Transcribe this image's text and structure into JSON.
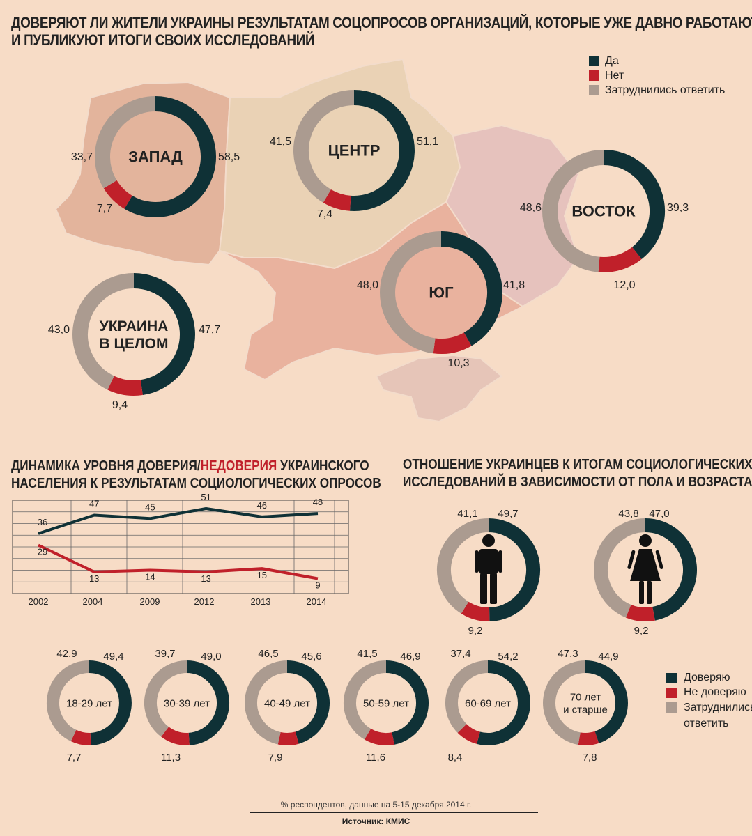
{
  "header": {
    "title_line1": "ДОВЕРЯЮТ ЛИ ЖИТЕЛИ УКРАИНЫ РЕЗУЛЬТАТАМ СОЦОПРОСОВ ОРГАНИЗАЦИЙ, КОТОРЫЕ УЖЕ ДАВНО РАБОТАЮТ",
    "title_line2": "И ПУБЛИКУЮТ ИТОГИ СВОИХ ИССЛЕДОВАНИЙ"
  },
  "legend_top": [
    "Да",
    "Нет",
    "Затруднились ответить"
  ],
  "legend_bottom": [
    "Доверяю",
    "Не доверяю",
    "Затруднились ответить"
  ],
  "colors": {
    "yes": "#0f3136",
    "no": "#c0202a",
    "unsure": "#ab9b90",
    "west": "#e3b49c",
    "center": "#ead2b5",
    "east": "#e6c2bd",
    "south": "#e9b29e",
    "crimea": "#e6c5b8"
  },
  "section_trend": {
    "title_line1_a": "ДИНАМИКА УРОВНЯ ",
    "title_trust": "ДОВЕРИЯ",
    "title_slash": "/",
    "title_distrust": "НЕДОВЕРИЯ",
    "title_line1_b": " УКРАИНСКОГО",
    "title_line2": "НАСЕЛЕНИЯ К РЕЗУЛЬТАТАМ СОЦИОЛОГИЧЕСКИХ ОПРОСОВ"
  },
  "section_demo": {
    "title_line1": "ОТНОШЕНИЕ УКРАИНЦЕВ К ИТОГАМ СОЦИОЛОГИЧЕСКИХ",
    "title_line2": "ИССЛЕДОВАНИЙ В ЗАВИСИМОСТИ ОТ ПОЛА И ВОЗРАСТА"
  },
  "footer": {
    "note": "% респондентов, данные на 5-15 декабря 2014 г.",
    "source": "Источник: КМИС"
  },
  "chart_data": [
    {
      "type": "pie",
      "title": "Регионы",
      "categories": [
        "Да",
        "Нет",
        "Затруднились ответить"
      ],
      "items": [
        {
          "label": [
            "ЗАПАД"
          ],
          "values": [
            58.5,
            7.7,
            33.7
          ],
          "labels": [
            "58,5",
            "7,7",
            "33,7"
          ]
        },
        {
          "label": [
            "ЦЕНТР"
          ],
          "values": [
            51.1,
            7.4,
            41.5
          ],
          "labels": [
            "51,1",
            "7,4",
            "41,5"
          ]
        },
        {
          "label": [
            "ВОСТОК"
          ],
          "values": [
            39.3,
            12.0,
            48.6
          ],
          "labels": [
            "39,3",
            "12,0",
            "48,6"
          ]
        },
        {
          "label": [
            "ЮГ"
          ],
          "values": [
            41.8,
            10.3,
            48.0
          ],
          "labels": [
            "41,8",
            "10,3",
            "48,0"
          ]
        },
        {
          "label": [
            "УКРАИНА",
            "В ЦЕЛОМ"
          ],
          "values": [
            47.7,
            9.4,
            43.0
          ],
          "labels": [
            "47,7",
            "9,4",
            "43,0"
          ]
        }
      ]
    },
    {
      "type": "line",
      "categories": [
        "2002",
        "2004",
        "2009",
        "2012",
        "2013",
        "2014"
      ],
      "series": [
        {
          "name": "ДОВЕРИЯ",
          "values": [
            36,
            47,
            45,
            51,
            46,
            48
          ]
        },
        {
          "name": "НЕДОВЕРИЯ",
          "values": [
            29,
            13,
            14,
            13,
            15,
            9
          ]
        }
      ]
    },
    {
      "type": "pie",
      "categories": [
        "Доверяю",
        "Не доверяю",
        "Затруднились ответить"
      ],
      "items": [
        {
          "label": [],
          "icon": "male-icon",
          "values": [
            49.7,
            9.2,
            41.1
          ],
          "labels": [
            "49,7",
            "9,2",
            "41,1"
          ]
        },
        {
          "label": [],
          "icon": "female-icon",
          "values": [
            47.0,
            9.2,
            43.8
          ],
          "labels": [
            "47,0",
            "9,2",
            "43,8"
          ]
        },
        {
          "label": [
            "18-29 лет"
          ],
          "values": [
            49.4,
            7.7,
            42.9
          ],
          "labels": [
            "49,4",
            "7,7",
            "42,9"
          ]
        },
        {
          "label": [
            "30-39 лет"
          ],
          "values": [
            49.0,
            11.3,
            39.7
          ],
          "labels": [
            "49,0",
            "11,3",
            "39,7"
          ]
        },
        {
          "label": [
            "40-49 лет"
          ],
          "values": [
            45.6,
            7.9,
            46.5
          ],
          "labels": [
            "45,6",
            "7,9",
            "46,5"
          ]
        },
        {
          "label": [
            "50-59 лет"
          ],
          "values": [
            46.9,
            11.6,
            41.5
          ],
          "labels": [
            "46,9",
            "11,6",
            "41,5"
          ]
        },
        {
          "label": [
            "60-69 лет"
          ],
          "values": [
            54.2,
            8.4,
            37.4
          ],
          "labels": [
            "54,2",
            "8,4",
            "37,4"
          ]
        },
        {
          "label": [
            "70 лет",
            "и старше"
          ],
          "values": [
            44.9,
            7.8,
            47.3
          ],
          "labels": [
            "44,9",
            "7,8",
            "47,3"
          ]
        }
      ]
    }
  ]
}
